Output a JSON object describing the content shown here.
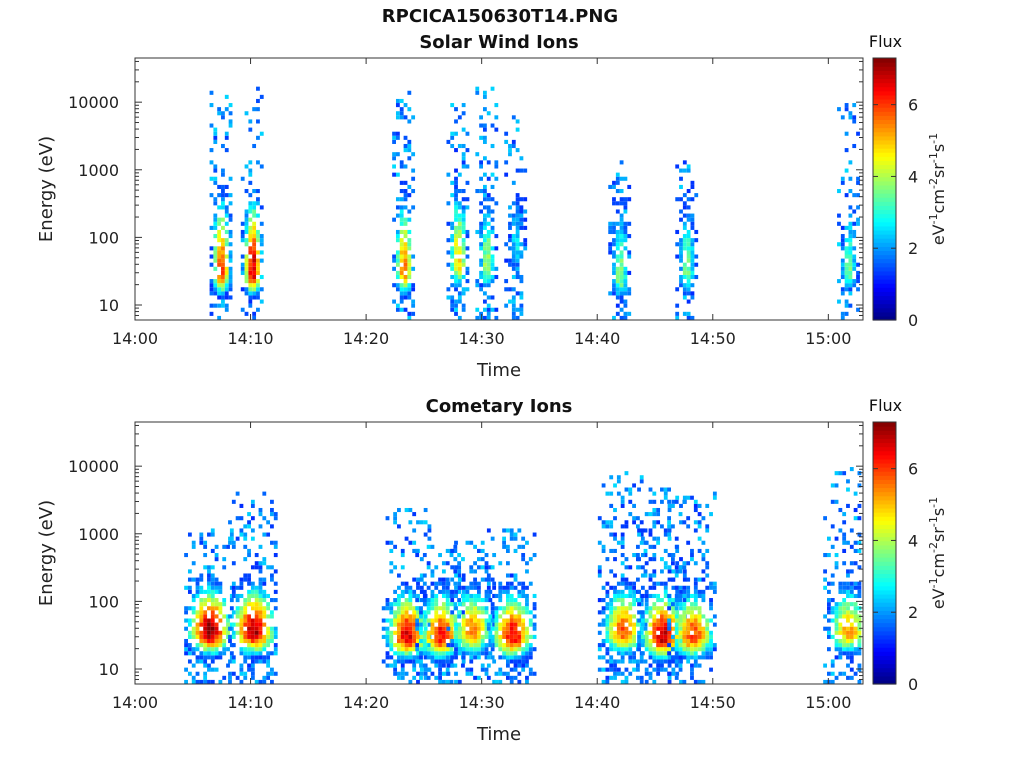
{
  "figure": {
    "file_title": "RPCICA150630T14.PNG"
  },
  "chart_data": [
    {
      "type": "heatmap",
      "title": "Solar Wind Ions",
      "xlabel": "Time",
      "ylabel": "Energy (eV)",
      "x_ticks": [
        "14:00",
        "14:10",
        "14:20",
        "14:30",
        "14:40",
        "14:50",
        "15:00"
      ],
      "x_range_min": [
        0,
        63
      ],
      "y_ticks": [
        "10",
        "100",
        "1000",
        "10000"
      ],
      "y_scale": "log",
      "y_range_eV": [
        6,
        45000
      ],
      "colorbar": {
        "title": "Flux",
        "label": "eV-1cm-2sr-1s-1",
        "ticks": [
          "0",
          "2",
          "4",
          "6"
        ],
        "range": [
          0,
          7.3
        ],
        "colormap": "jet"
      },
      "bursts": [
        {
          "t_min": 7.5,
          "peak_eV": 30,
          "peak_flux": 6.0,
          "max_eV": 12000
        },
        {
          "t_min": 10.2,
          "peak_eV": 30,
          "peak_flux": 6.8,
          "max_eV": 14000
        },
        {
          "t_min": 23.3,
          "peak_eV": 30,
          "peak_flux": 5.5,
          "max_eV": 13000
        },
        {
          "t_min": 28.0,
          "peak_eV": 40,
          "peak_flux": 5.0,
          "max_eV": 9000
        },
        {
          "t_min": 30.5,
          "peak_eV": 35,
          "peak_flux": 4.0,
          "max_eV": 14000
        },
        {
          "t_min": 33.0,
          "peak_eV": 60,
          "peak_flux": 2.6,
          "max_eV": 6000
        },
        {
          "t_min": 42.0,
          "peak_eV": 25,
          "peak_flux": 3.8,
          "max_eV": 1200
        },
        {
          "t_min": 47.8,
          "peak_eV": 30,
          "peak_flux": 3.6,
          "max_eV": 1200
        },
        {
          "t_min": 61.8,
          "peak_eV": 30,
          "peak_flux": 3.4,
          "max_eV": 9500
        }
      ]
    },
    {
      "type": "heatmap",
      "title": "Cometary Ions",
      "xlabel": "Time",
      "ylabel": "Energy (eV)",
      "x_ticks": [
        "14:00",
        "14:10",
        "14:20",
        "14:30",
        "14:40",
        "14:50",
        "15:00"
      ],
      "x_range_min": [
        0,
        63
      ],
      "y_ticks": [
        "10",
        "100",
        "1000",
        "10000"
      ],
      "y_scale": "log",
      "y_range_eV": [
        6,
        45000
      ],
      "colorbar": {
        "title": "Flux",
        "label": "eV-1cm-2sr-1s-1",
        "ticks": [
          "0",
          "2",
          "4",
          "6"
        ],
        "range": [
          0,
          7.3
        ],
        "colormap": "jet"
      },
      "bursts": [
        {
          "t_min": 6.5,
          "peak_eV": 35,
          "peak_flux": 7.2,
          "max_eV": 1000
        },
        {
          "t_min": 10.3,
          "peak_eV": 35,
          "peak_flux": 7.0,
          "max_eV": 3500
        },
        {
          "t_min": 23.6,
          "peak_eV": 30,
          "peak_flux": 6.6,
          "max_eV": 2500
        },
        {
          "t_min": 26.5,
          "peak_eV": 30,
          "peak_flux": 6.4,
          "max_eV": 600
        },
        {
          "t_min": 29.2,
          "peak_eV": 35,
          "peak_flux": 5.5,
          "max_eV": 800
        },
        {
          "t_min": 32.7,
          "peak_eV": 30,
          "peak_flux": 6.5,
          "max_eV": 1000
        },
        {
          "t_min": 42.3,
          "peak_eV": 35,
          "peak_flux": 5.8,
          "max_eV": 7000
        },
        {
          "t_min": 45.7,
          "peak_eV": 30,
          "peak_flux": 6.9,
          "max_eV": 4000
        },
        {
          "t_min": 48.3,
          "peak_eV": 30,
          "peak_flux": 6.0,
          "max_eV": 4000
        },
        {
          "t_min": 61.8,
          "peak_eV": 35,
          "peak_flux": 5.2,
          "max_eV": 8000
        }
      ]
    }
  ]
}
